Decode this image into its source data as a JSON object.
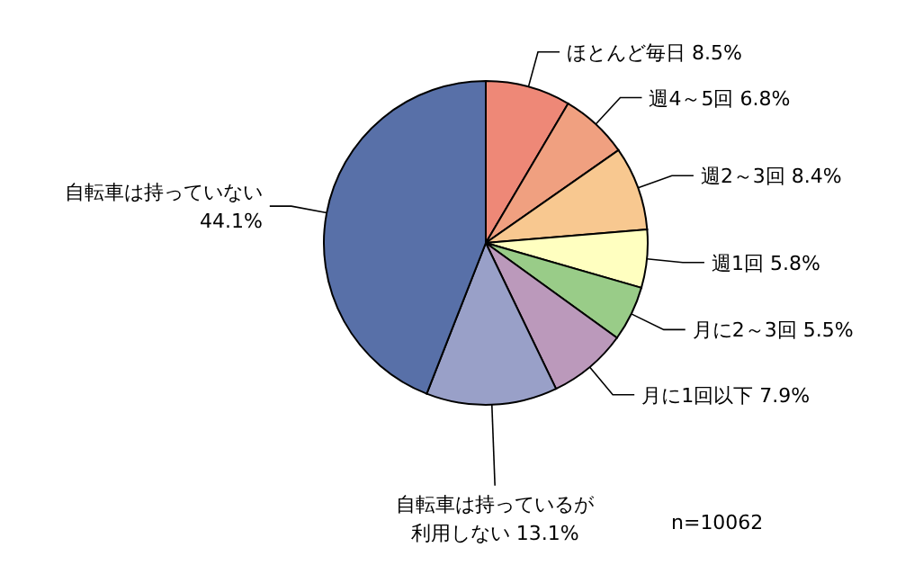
{
  "chart_data": {
    "type": "pie",
    "categories": [
      "ほとんど毎日",
      "週4～5回",
      "週2～3回",
      "週1回",
      "月に2～3回",
      "月に1回以下",
      "自転車は持っているが利用しない",
      "自転車は持っていない"
    ],
    "values": [
      8.5,
      6.8,
      8.4,
      5.8,
      5.5,
      7.9,
      13.1,
      44.1
    ],
    "colors": [
      "#ee8877",
      "#f0a080",
      "#f8c890",
      "#ffffc0",
      "#99cc88",
      "#bb99bb",
      "#99a0c8",
      "#5870a8"
    ],
    "value_labels": [
      "8.5%",
      "6.8%",
      "8.4%",
      "5.8%",
      "5.5%",
      "7.9%",
      "13.1%",
      "44.1%"
    ],
    "annotations": [
      "n=10062"
    ]
  }
}
